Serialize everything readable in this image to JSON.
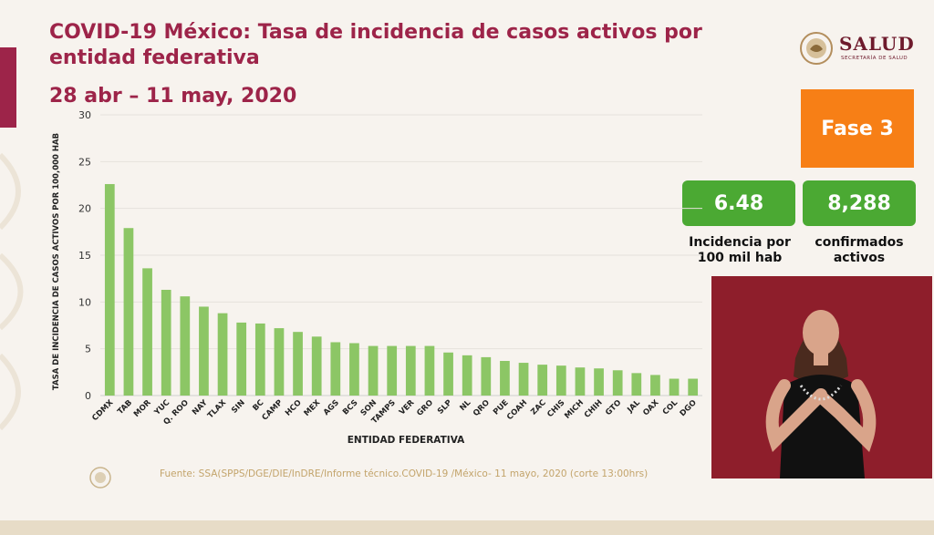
{
  "header": {
    "title": "COVID-19 México: Tasa de incidencia de casos activos por entidad federativa",
    "date_range": "28 abr – 11 may, 2020"
  },
  "logo": {
    "name": "SALUD",
    "subtitle": "SECRETARÍA DE SALUD"
  },
  "phase": {
    "label": "Fase 3",
    "color": "#f77f16"
  },
  "stats": [
    {
      "value": "6.48",
      "label_line1": "Incidencia por",
      "label_line2": "100 mil hab"
    },
    {
      "value": "8,288",
      "label_line1": "confirmados",
      "label_line2": "activos"
    }
  ],
  "source": "Fuente: SSA(SPPS/DGE/DIE/InDRE/Informe técnico.COVID-19 /México- 11 mayo, 2020 (corte 13:00hrs)",
  "chart_data": {
    "type": "bar",
    "xlabel": "ENTIDAD FEDERATIVA",
    "ylabel": "TASA DE INCIDENCIA DE CASOS ACTIVOS POR 100,000 HAB",
    "ylim": [
      0,
      30
    ],
    "yticks": [
      0,
      5,
      10,
      15,
      20,
      25,
      30
    ],
    "grid": true,
    "bar_color": "#8cc665",
    "categories": [
      "CDMX",
      "TAB",
      "MOR",
      "YUC",
      "Q. ROO",
      "NAY",
      "TLAX",
      "SIN",
      "BC",
      "CAMP",
      "HCO",
      "MEX",
      "AGS",
      "BCS",
      "SON",
      "TAMPS",
      "VER",
      "GRO",
      "SLP",
      "NL",
      "QRO",
      "PUE",
      "COAH",
      "ZAC",
      "CHIS",
      "MICH",
      "CHIH",
      "GTO",
      "JAL",
      "OAX",
      "COL",
      "DGO"
    ],
    "values": [
      22.6,
      17.9,
      13.6,
      11.3,
      10.6,
      9.5,
      8.8,
      7.8,
      7.7,
      7.2,
      6.8,
      6.3,
      5.7,
      5.6,
      5.3,
      5.3,
      5.3,
      5.3,
      4.6,
      4.3,
      4.1,
      3.7,
      3.5,
      3.3,
      3.2,
      3.0,
      2.9,
      2.7,
      2.4,
      2.2,
      1.8,
      1.8
    ]
  }
}
